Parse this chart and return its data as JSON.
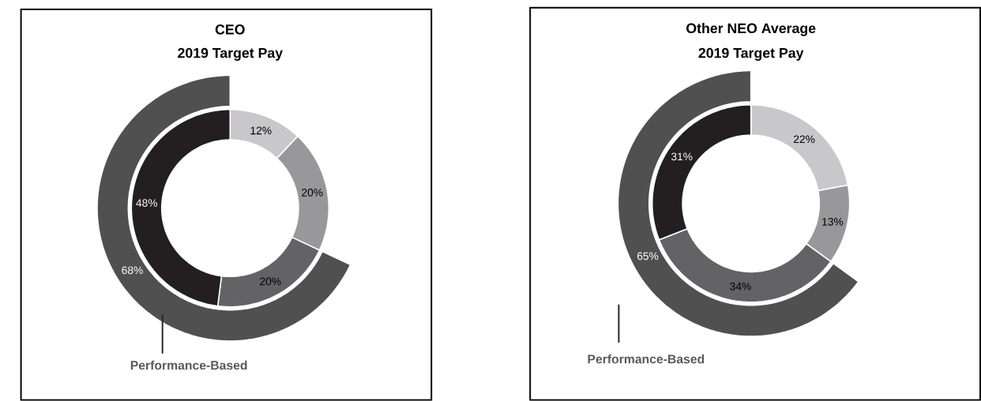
{
  "chart_data": [
    {
      "type": "donut",
      "title": "CEO",
      "subtitle": "2019 Target Pay",
      "annotations": [
        "Performance-Based"
      ],
      "series": [
        {
          "values": [
            12,
            20,
            20,
            48
          ],
          "colors": [
            "#c8c8ca",
            "#98989b",
            "#636365",
            "#231f20"
          ],
          "value_labels": [
            "12%",
            "20%",
            "20%",
            "48%"
          ]
        },
        {
          "values": [
            68
          ],
          "colors": [
            "#505050"
          ],
          "value_labels": [
            "68%"
          ]
        }
      ]
    },
    {
      "type": "donut",
      "title": "Other NEO Average",
      "subtitle": "2019 Target Pay",
      "annotations": [
        "Performance-Based"
      ],
      "series": [
        {
          "values": [
            22,
            13,
            34,
            31
          ],
          "colors": [
            "#c8c8ca",
            "#98989b",
            "#636365",
            "#231f20"
          ],
          "value_labels": [
            "22%",
            "13%",
            "34%",
            "31%"
          ]
        },
        {
          "values": [
            65
          ],
          "colors": [
            "#505050"
          ],
          "value_labels": [
            "65%"
          ]
        }
      ]
    }
  ]
}
